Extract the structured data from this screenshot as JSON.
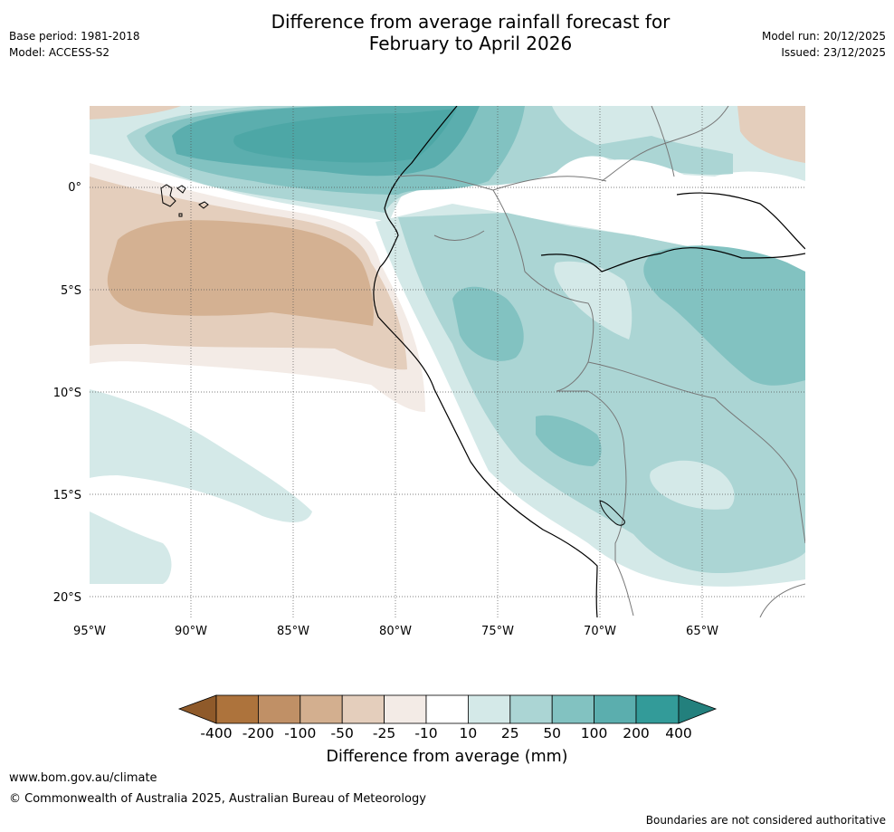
{
  "header": {
    "title_line1": "Difference from average rainfall forecast for",
    "title_line2": "February to April 2026",
    "base_period": "Base period: 1981-2018",
    "model": "Model: ACCESS-S2",
    "model_run": "Model run: 20/12/2025",
    "issued": "Issued: 23/12/2025"
  },
  "map": {
    "region": "Equatorial South America and eastern Pacific",
    "lon_range": [
      -95,
      -60
    ],
    "lat_range": [
      -21,
      4
    ],
    "lon_ticks": [
      "95°W",
      "90°W",
      "85°W",
      "80°W",
      "75°W",
      "70°W",
      "65°W"
    ],
    "lat_ticks": [
      "0°",
      "5°S",
      "10°S",
      "15°S",
      "20°S"
    ]
  },
  "colorbar": {
    "title": "Difference from average (mm)",
    "tick_labels": [
      "-400",
      "-200",
      "-100",
      "-50",
      "-25",
      "-10",
      "10",
      "25",
      "50",
      "100",
      "200",
      "400"
    ],
    "colors": {
      "lt_neg400": "#8f5a2a",
      "neg400_neg200": "#ad733c",
      "neg200_neg100": "#c09066",
      "neg100_neg50": "#d3af8f",
      "neg50_neg25": "#e4cebc",
      "neg25_neg10": "#f3ebe6",
      "neg10_10": "#ffffff",
      "10_25": "#d4e9e8",
      "25_50": "#abd5d4",
      "50_100": "#82c2c1",
      "100_200": "#5baeae",
      "200_400": "#339b99",
      "gt_400": "#23807d"
    }
  },
  "footer": {
    "url": "www.bom.gov.au/climate",
    "copyright": "© Commonwealth of Australia 2025, Australian Bureau of Meteorology",
    "note": "Boundaries are not considered authoritative"
  }
}
